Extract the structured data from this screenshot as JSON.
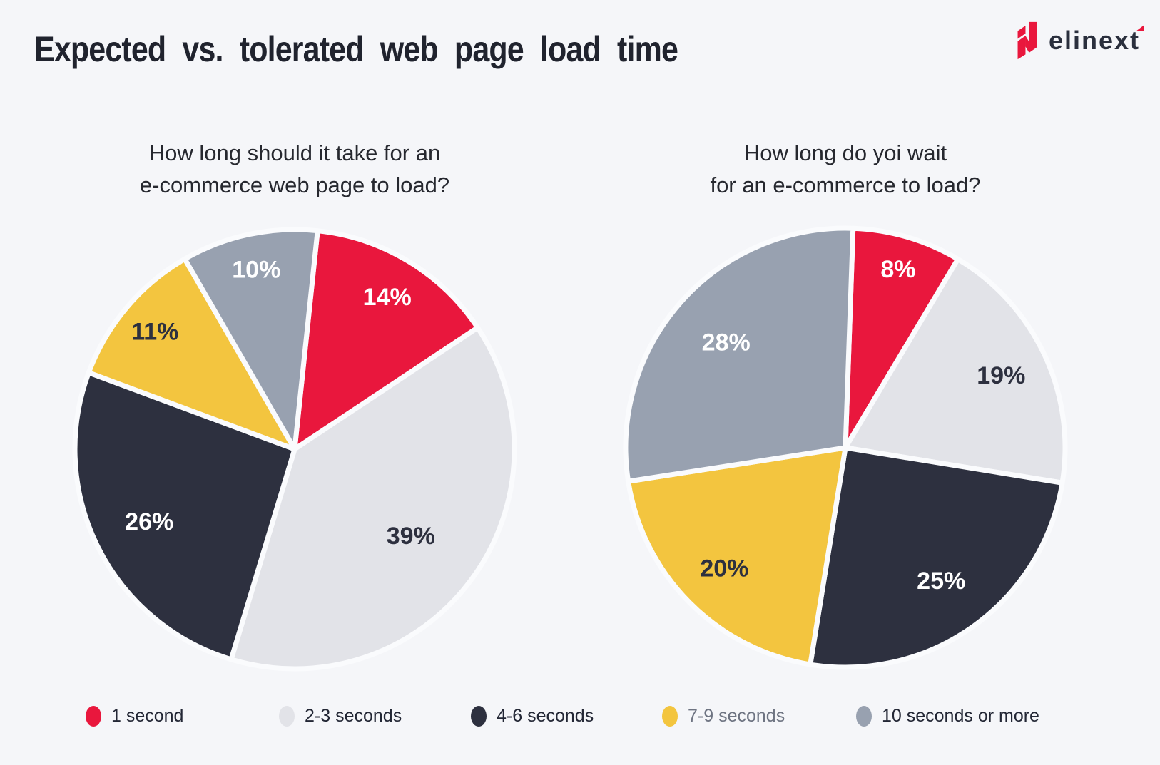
{
  "header": {
    "title": "Expected vs. tolerated web page load time",
    "logo_text": "elinext"
  },
  "chart_data": [
    {
      "type": "pie",
      "title": "How long should it take for an e-commerce web page to load?",
      "title_lines": [
        "How long should it take for an",
        "e-commerce web page to load?"
      ],
      "unit": "%",
      "start_angle_deg": 6,
      "direction": "clockwise",
      "segments": [
        {
          "label": "1 second",
          "value": 14,
          "color": "#e9173d",
          "label_color": "#ffffff"
        },
        {
          "label": "2-3 seconds",
          "value": 39,
          "color": "#e2e3e8",
          "label_color": "#2d303f"
        },
        {
          "label": "4-6 seconds",
          "value": 26,
          "color": "#2d303f",
          "label_color": "#ffffff"
        },
        {
          "label": "7-9 seconds",
          "value": 11,
          "color": "#f3c53f",
          "label_color": "#2d303f"
        },
        {
          "label": "10 seconds or more",
          "value": 10,
          "color": "#98a1b0",
          "label_color": "#ffffff"
        }
      ]
    },
    {
      "type": "pie",
      "title": "How long do yoi wait for an e-commerce to load?",
      "title_lines": [
        "How long do yoi wait",
        "for an e-commerce to load?"
      ],
      "unit": "%",
      "start_angle_deg": 2,
      "direction": "clockwise",
      "segments": [
        {
          "label": "1 second",
          "value": 8,
          "color": "#e9173d",
          "label_color": "#ffffff"
        },
        {
          "label": "2-3 seconds",
          "value": 19,
          "color": "#e2e3e8",
          "label_color": "#2d303f"
        },
        {
          "label": "4-6 seconds",
          "value": 25,
          "color": "#2d303f",
          "label_color": "#ffffff"
        },
        {
          "label": "7-9 seconds",
          "value": 20,
          "color": "#f3c53f",
          "label_color": "#2d303f"
        },
        {
          "label": "10 seconds or more",
          "value": 28,
          "color": "#98a1b0",
          "label_color": "#ffffff"
        }
      ]
    }
  ],
  "legend": {
    "items": [
      {
        "label": "1 second",
        "color": "#e9173d",
        "text_color": "#232735"
      },
      {
        "label": "2-3 seconds",
        "color": "#e2e3e8",
        "text_color": "#232735"
      },
      {
        "label": "4-6 seconds",
        "color": "#2d303f",
        "text_color": "#232735"
      },
      {
        "label": "7-9 seconds",
        "color": "#f3c53f",
        "text_color": "#6e7482"
      },
      {
        "label": "10 seconds or more",
        "color": "#98a1b0",
        "text_color": "#232735"
      }
    ]
  },
  "colors": {
    "background": "#f5f6f9",
    "accent_red": "#e9173d",
    "text_dark": "#20232e",
    "slice_gap": "#fafbfd"
  }
}
